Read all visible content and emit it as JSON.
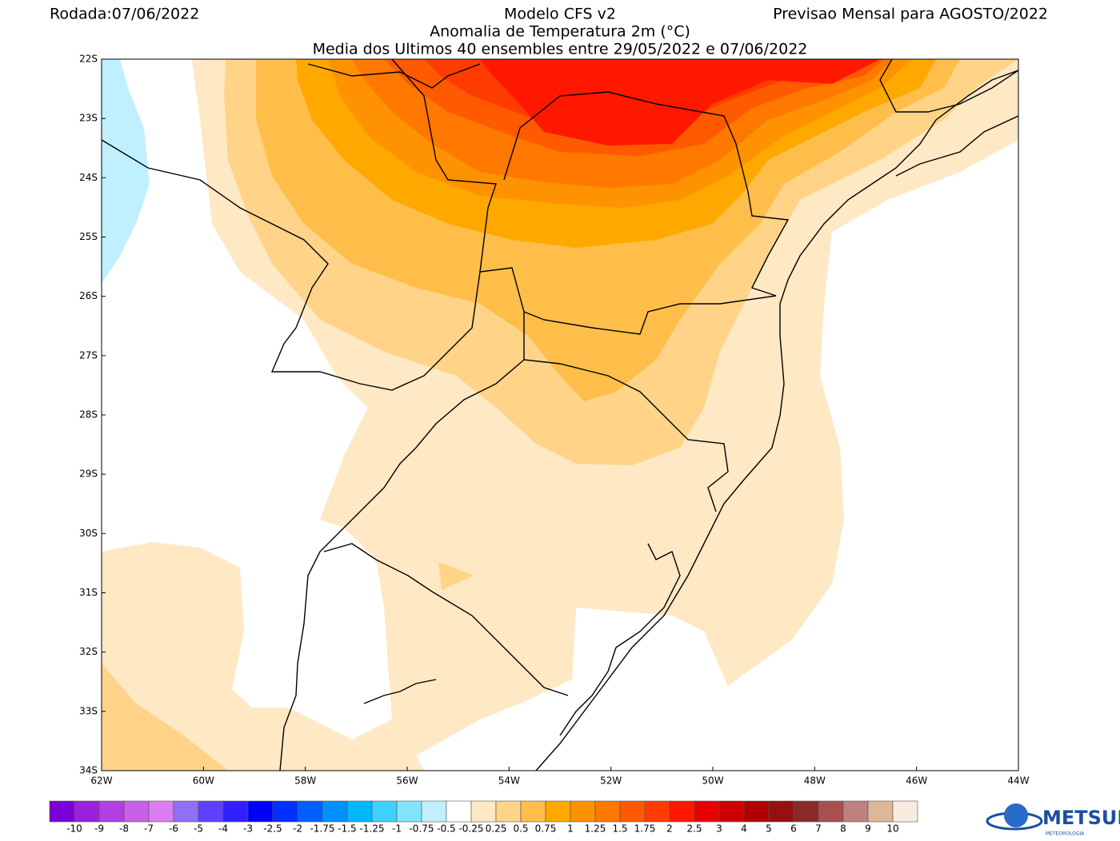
{
  "header": {
    "run": "Rodada:07/06/2022",
    "model": "Modelo CFS v2",
    "forecast": "Previsao Mensal para AGOSTO/2022",
    "subtitle": "Anomalia de Temperatura 2m (°C)",
    "subtitle2": "Media dos Ultimos 40 ensembles entre 29/05/2022 e 07/06/2022"
  },
  "map": {
    "lat_labels": [
      "22S",
      "23S",
      "24S",
      "25S",
      "26S",
      "27S",
      "28S",
      "29S",
      "30S",
      "31S",
      "32S",
      "33S",
      "34S"
    ],
    "lon_labels": [
      "62W",
      "60W",
      "58W",
      "56W",
      "54W",
      "52W",
      "50W",
      "48W",
      "46W",
      "44W"
    ]
  },
  "colorbar": {
    "labels": [
      "-10",
      "-9",
      "-8",
      "-7",
      "-6",
      "-5",
      "-4",
      "-3",
      "-2.5",
      "-2",
      "-1.75",
      "-1.5",
      "-1.25",
      "-1",
      "-0.75",
      "-0.5",
      "-0.25",
      "0.25",
      "0.5",
      "0.75",
      "1",
      "1.25",
      "1.5",
      "1.75",
      "2",
      "2.5",
      "3",
      "4",
      "5",
      "6",
      "7",
      "8",
      "9",
      "10"
    ],
    "colors": [
      "#7a00d6",
      "#9a20dc",
      "#b040e2",
      "#c860e8",
      "#dc7ef0",
      "#9070f8",
      "#6040ff",
      "#3020ff",
      "#0000ff",
      "#0030ff",
      "#0060ff",
      "#0090ff",
      "#00b8ff",
      "#40d0ff",
      "#80e4ff",
      "#c0f0ff",
      "#ffffff",
      "#ffe8c4",
      "#ffd489",
      "#ffbe4a",
      "#ffa800",
      "#ff9200",
      "#ff7800",
      "#ff5a00",
      "#ff3c00",
      "#ff1800",
      "#e60000",
      "#cc0000",
      "#b00000",
      "#961010",
      "#8a2a2a",
      "#a85050",
      "#c08080",
      "#dcb898",
      "#f8ece0"
    ]
  },
  "logo": {
    "name": "METSUL",
    "tagline": "METEOROLOGIA"
  }
}
